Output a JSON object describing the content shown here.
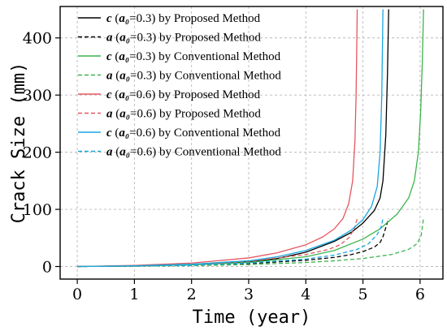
{
  "chart_data": {
    "type": "line",
    "xlabel": "Time (year)",
    "ylabel": "Crack Size (mm)",
    "xlim": [
      -0.3,
      6.4
    ],
    "ylim": [
      -22,
      455
    ],
    "xticks": [
      0,
      1,
      2,
      3,
      4,
      5,
      6
    ],
    "yticks": [
      0,
      100,
      200,
      300,
      400
    ],
    "grid": true,
    "legend_position": "top-left",
    "series": [
      {
        "name": "c (a₀=0.3) by Proposed Method",
        "legend": {
          "var": "c",
          "sub": "a₀",
          "val": "=0.3)",
          "method": "by Proposed Method"
        },
        "color": "#000000",
        "dash": "solid",
        "points": [
          [
            0,
            0
          ],
          [
            1,
            1
          ],
          [
            2,
            3
          ],
          [
            3,
            8
          ],
          [
            3.5,
            14
          ],
          [
            4,
            25
          ],
          [
            4.5,
            44
          ],
          [
            4.8,
            60
          ],
          [
            5.0,
            76
          ],
          [
            5.2,
            98
          ],
          [
            5.3,
            120
          ],
          [
            5.35,
            150
          ],
          [
            5.4,
            230
          ],
          [
            5.43,
            340
          ],
          [
            5.45,
            450
          ]
        ]
      },
      {
        "name": "a (a₀=0.3) by Proposed Method",
        "legend": {
          "var": "a",
          "sub": "a₀",
          "val": "=0.3)",
          "method": "by Proposed Method"
        },
        "color": "#000000",
        "dash": "dashed",
        "points": [
          [
            0,
            0
          ],
          [
            1,
            0.7
          ],
          [
            2,
            2
          ],
          [
            3,
            5
          ],
          [
            4,
            11
          ],
          [
            4.5,
            16
          ],
          [
            4.8,
            21
          ],
          [
            5.0,
            26
          ],
          [
            5.2,
            34
          ],
          [
            5.3,
            42
          ],
          [
            5.35,
            52
          ],
          [
            5.4,
            68
          ],
          [
            5.45,
            84
          ]
        ]
      },
      {
        "name": "c (a₀=0.3) by Conventional Method",
        "legend": {
          "var": "c",
          "sub": "a₀",
          "val": "=0.3)",
          "method": "by Conventional Method"
        },
        "color": "#3cb44b",
        "dash": "solid",
        "points": [
          [
            0,
            0
          ],
          [
            1,
            1
          ],
          [
            2,
            3
          ],
          [
            3,
            7
          ],
          [
            4,
            17
          ],
          [
            4.5,
            28
          ],
          [
            5.0,
            48
          ],
          [
            5.3,
            66
          ],
          [
            5.6,
            92
          ],
          [
            5.8,
            120
          ],
          [
            5.9,
            150
          ],
          [
            5.97,
            200
          ],
          [
            6.01,
            270
          ],
          [
            6.04,
            360
          ],
          [
            6.06,
            450
          ]
        ]
      },
      {
        "name": "a (a₀=0.3) by Conventional Method",
        "legend": {
          "var": "a",
          "sub": "a₀",
          "val": "=0.3)",
          "method": "by Conventional Method"
        },
        "color": "#3cb44b",
        "dash": "dashed",
        "points": [
          [
            0,
            0
          ],
          [
            1,
            0.6
          ],
          [
            2,
            1.5
          ],
          [
            3,
            3.5
          ],
          [
            4,
            7
          ],
          [
            4.5,
            10
          ],
          [
            5.0,
            14
          ],
          [
            5.5,
            21
          ],
          [
            5.8,
            30
          ],
          [
            5.95,
            40
          ],
          [
            6.02,
            55
          ],
          [
            6.06,
            84
          ]
        ]
      },
      {
        "name": "c (a₀=0.6) by Proposed Method",
        "legend": {
          "var": "c",
          "sub": "a₀",
          "val": "=0.6)",
          "method": "by Proposed Method"
        },
        "color": "#e5575f",
        "dash": "solid",
        "points": [
          [
            0,
            0
          ],
          [
            1,
            2
          ],
          [
            2,
            6
          ],
          [
            3,
            15
          ],
          [
            3.5,
            24
          ],
          [
            4,
            38
          ],
          [
            4.3,
            52
          ],
          [
            4.5,
            66
          ],
          [
            4.65,
            84
          ],
          [
            4.75,
            110
          ],
          [
            4.82,
            150
          ],
          [
            4.86,
            220
          ],
          [
            4.88,
            300
          ],
          [
            4.9,
            450
          ]
        ]
      },
      {
        "name": "a (a₀=0.6) by Proposed Method",
        "legend": {
          "var": "a",
          "sub": "a₀",
          "val": "=0.6)",
          "method": "by Proposed Method"
        },
        "color": "#e5575f",
        "dash": "dashed",
        "points": [
          [
            0,
            0
          ],
          [
            1,
            1.2
          ],
          [
            2,
            3.5
          ],
          [
            3,
            9
          ],
          [
            4,
            21
          ],
          [
            4.4,
            30
          ],
          [
            4.6,
            38
          ],
          [
            4.75,
            50
          ],
          [
            4.85,
            66
          ],
          [
            4.9,
            84
          ]
        ]
      },
      {
        "name": "c (a₀=0.6) by Conventional Method",
        "legend": {
          "var": "c",
          "sub": "a₀",
          "val": "=0.6)",
          "method": "by Conventional Method"
        },
        "color": "#1aa7e0",
        "dash": "solid",
        "points": [
          [
            0,
            0
          ],
          [
            1,
            1.2
          ],
          [
            2,
            4
          ],
          [
            3,
            10
          ],
          [
            3.5,
            17
          ],
          [
            4,
            28
          ],
          [
            4.5,
            46
          ],
          [
            4.8,
            64
          ],
          [
            5.0,
            82
          ],
          [
            5.15,
            105
          ],
          [
            5.25,
            140
          ],
          [
            5.3,
            200
          ],
          [
            5.33,
            300
          ],
          [
            5.35,
            450
          ]
        ]
      },
      {
        "name": "a (a₀=0.6) by Conventional Method",
        "legend": {
          "var": "a",
          "sub": "a₀",
          "val": "=0.6)",
          "method": "by Conventional Method"
        },
        "color": "#1aa7e0",
        "dash": "dashed",
        "points": [
          [
            0,
            0
          ],
          [
            1,
            0.8
          ],
          [
            2,
            2.2
          ],
          [
            3,
            6
          ],
          [
            4,
            13
          ],
          [
            4.5,
            20
          ],
          [
            4.9,
            30
          ],
          [
            5.1,
            40
          ],
          [
            5.25,
            56
          ],
          [
            5.32,
            70
          ],
          [
            5.35,
            84
          ]
        ]
      }
    ]
  }
}
